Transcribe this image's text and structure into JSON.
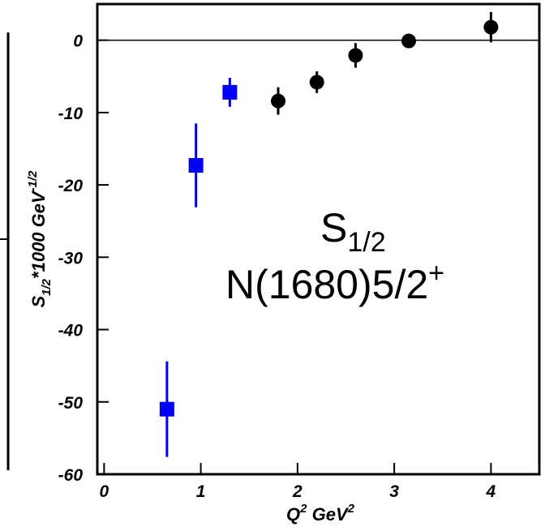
{
  "chart_data": {
    "type": "scatter",
    "ylabel": [
      "S",
      "1/2",
      "*1000 GeV",
      "-1/2"
    ],
    "xlabel": [
      "Q",
      "2",
      " GeV",
      "2"
    ],
    "annotations": [
      [
        "S",
        "1/2"
      ],
      [
        "N(1680)5/2",
        "+"
      ]
    ],
    "xlim": [
      -0.07,
      4.5
    ],
    "ylim": [
      -60,
      5
    ],
    "xticks": [
      0,
      1,
      2,
      3,
      4
    ],
    "yticks": [
      -60,
      -50,
      -40,
      -30,
      -20,
      -10,
      0
    ],
    "series": [
      {
        "color": "#0000ff",
        "marker": "square",
        "x": [
          0.65,
          0.95,
          1.3
        ],
        "values": [
          -51,
          -17.3,
          -7.2
        ],
        "err": [
          6.6,
          5.8,
          2
        ]
      },
      {
        "color": "#000000",
        "marker": "circle",
        "x": [
          1.8,
          2.2,
          2.6,
          3.15,
          4.0
        ],
        "values": [
          -8.4,
          -5.8,
          -2.1,
          -0.1,
          1.8
        ],
        "err": [
          1.9,
          1.5,
          1.7,
          0.4,
          2.1
        ]
      }
    ]
  }
}
